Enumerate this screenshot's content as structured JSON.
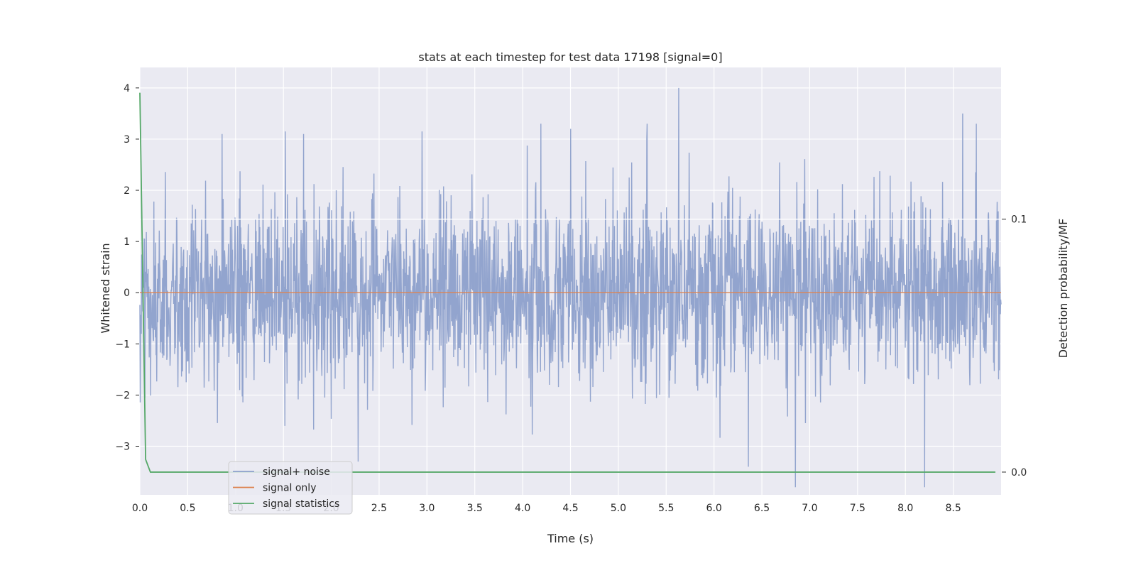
{
  "chart_data": {
    "type": "line",
    "title": "stats at each timestep for test data 17198 [signal=0]",
    "xlabel": "Time (s)",
    "ylabel": "Whitened strain",
    "y2label": "Detection probability/MF",
    "xlim": [
      0.0,
      9.0
    ],
    "ylim": [
      -3.95,
      4.4
    ],
    "y2lim": [
      -0.009,
      0.16
    ],
    "xticks": [
      "0.0",
      "0.5",
      "1.0",
      "1.5",
      "2.0",
      "2.5",
      "3.0",
      "3.5",
      "4.0",
      "4.5",
      "5.0",
      "5.5",
      "6.0",
      "6.5",
      "7.0",
      "7.5",
      "8.0",
      "8.5"
    ],
    "yticks": [
      "−3",
      "−2",
      "−1",
      "0",
      "1",
      "2",
      "3",
      "4"
    ],
    "y2ticks": [
      "0.0",
      "0.1"
    ],
    "grid": true,
    "legend_position": "lower-left",
    "series": [
      {
        "name": "signal+ noise",
        "axis": "left",
        "color": "#8da0cb",
        "description_stats": {
          "mean": 0.0,
          "std": 0.85,
          "min": -3.8,
          "max": 4.0
        },
        "peaks": [
          {
            "x": 0.86,
            "y": 3.1
          },
          {
            "x": 1.52,
            "y": 3.15
          },
          {
            "x": 1.71,
            "y": 3.1
          },
          {
            "x": 2.95,
            "y": 3.15
          },
          {
            "x": 4.19,
            "y": 3.3
          },
          {
            "x": 4.5,
            "y": 3.2
          },
          {
            "x": 5.3,
            "y": 3.3
          },
          {
            "x": 5.63,
            "y": 4.0
          },
          {
            "x": 8.6,
            "y": 3.5
          },
          {
            "x": 8.74,
            "y": 3.3
          },
          {
            "x": 6.85,
            "y": -3.8
          },
          {
            "x": 8.2,
            "y": -3.8
          },
          {
            "x": 2.28,
            "y": -3.3
          },
          {
            "x": 6.36,
            "y": -3.4
          }
        ]
      },
      {
        "name": "signal only",
        "axis": "left",
        "color": "#dd8452",
        "x": [
          0.0,
          9.0
        ],
        "y": [
          0.0,
          0.0
        ]
      },
      {
        "name": "signal statistics",
        "axis": "right",
        "color": "#55a868",
        "x": [
          0.0,
          0.06,
          0.11,
          0.5,
          2.0,
          4.0,
          6.0,
          8.0,
          8.94
        ],
        "y": [
          0.15,
          0.005,
          0.0,
          0.0,
          0.0,
          0.0,
          0.0,
          0.0,
          0.0
        ]
      }
    ],
    "horizontal_gridline_right_axis": 0.1
  }
}
